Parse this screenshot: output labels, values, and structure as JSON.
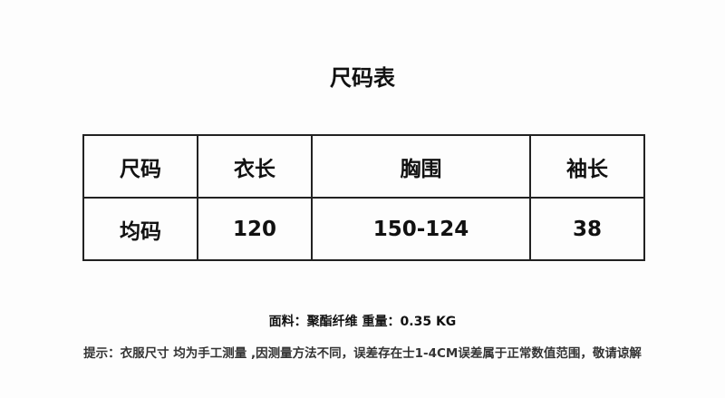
{
  "title": "尺码表",
  "table": {
    "headers": [
      "尺码",
      "衣长",
      "胸围",
      "袖长"
    ],
    "rows": [
      [
        "均码",
        "120",
        "150-124",
        "38"
      ]
    ]
  },
  "material": "面料：聚酯纤维  重量：0.35 KG",
  "tip": "提示：衣服尺寸 均为手工测量 ,因测量方法不同，误差存在士1-4CM误差属于正常数值范围，敬请谅解"
}
